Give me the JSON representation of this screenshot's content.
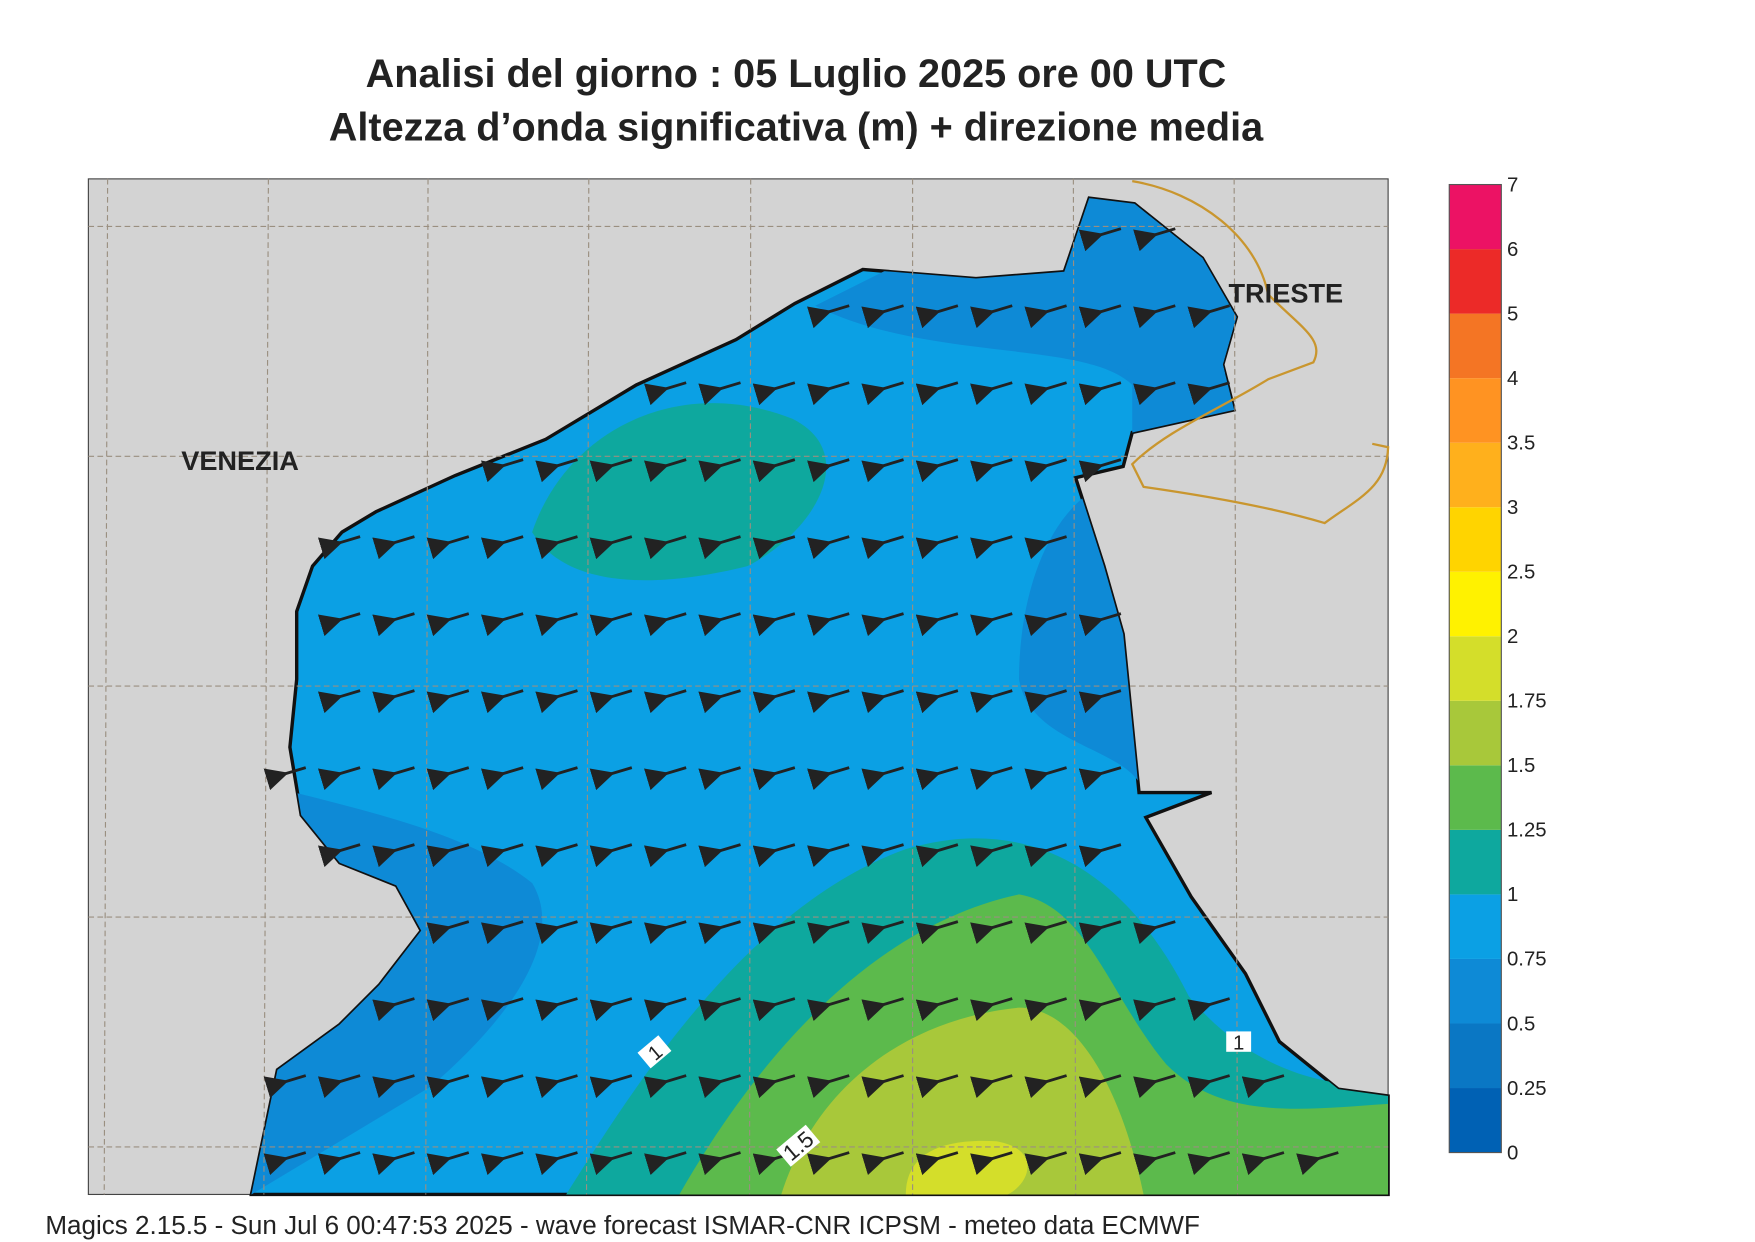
{
  "header": {
    "title": "Analisi del giorno :  05  Luglio   2025   ore 00 UTC",
    "subtitle": "Altezza d’onda significativa (m) + direzione media"
  },
  "map": {
    "places": [
      "VENEZIA",
      "TRIESTE"
    ],
    "contour_labels": [
      "1",
      "1",
      "1.5"
    ]
  },
  "legend": {
    "levels": [
      "0",
      "0.25",
      "0.5",
      "0.75",
      "1",
      "1.25",
      "1.5",
      "1.75",
      "2",
      "2.5",
      "3",
      "3.5",
      "4",
      "5",
      "6",
      "7"
    ],
    "colors": [
      "#0061b4",
      "#0a77c4",
      "#0e8ad6",
      "#0ba0e4",
      "#0ea89e",
      "#5cba4c",
      "#a8c83a",
      "#d4de2a",
      "#fff200",
      "#ffd400",
      "#ffb01c",
      "#ff9322",
      "#f47524",
      "#ec2a28",
      "#ec1264"
    ]
  },
  "footer": {
    "text": "Magics 2.15.5 - Sun Jul  6 00:47:53 2025 - wave forecast  ISMAR-CNR  ICPSM - meteo data    ECMWF"
  }
}
